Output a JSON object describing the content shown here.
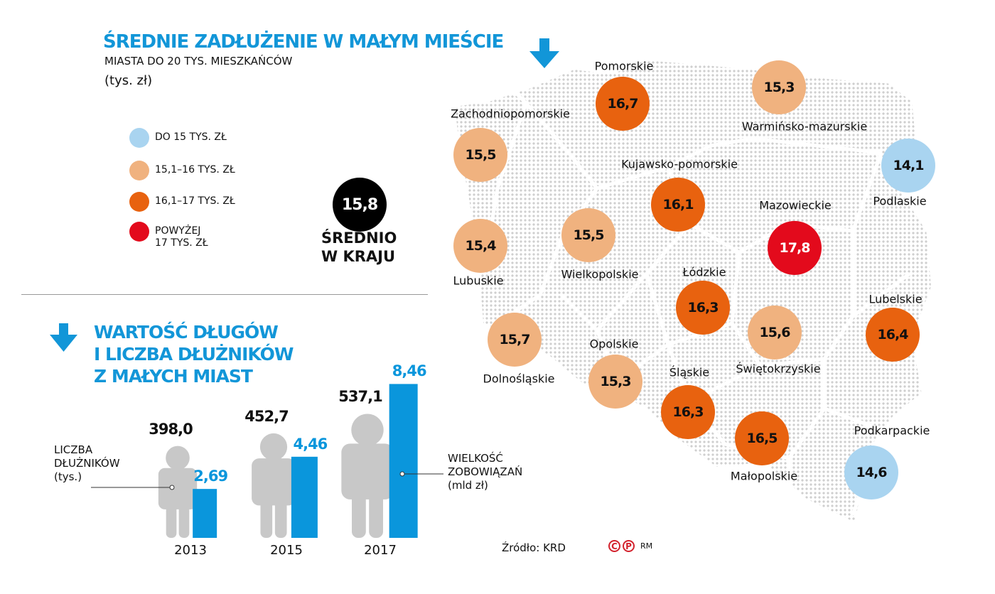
{
  "chart_data": [
    {
      "type": "map",
      "title": "ŚREDNIE ZADŁUŻENIE W MAŁYM MIEŚCIE",
      "subtitle": "MIASTA DO 20 TYS. MIESZKAŃCÓW",
      "unit": "(tys. zł)",
      "legend": [
        {
          "label": "DO 15 TYS. ZŁ",
          "color": "#a9d4f0"
        },
        {
          "label": "15,1–16 TYS. ZŁ",
          "color": "#f0b27f"
        },
        {
          "label": "16,1–17 TYS. ZŁ",
          "color": "#e8620f"
        },
        {
          "label": "POWYŻEJ 17 TYS. ZŁ",
          "color": "#e30a1c"
        }
      ],
      "national_average": {
        "value": "15,8",
        "label": "ŚREDNIO W KRAJU"
      },
      "regions": [
        {
          "name": "Pomorskie",
          "value": "16,7",
          "category": 2
        },
        {
          "name": "Warmińsko-mazurskie",
          "value": "15,3",
          "category": 1
        },
        {
          "name": "Zachodniopomorskie",
          "value": "15,5",
          "category": 1
        },
        {
          "name": "Podlaskie",
          "value": "14,1",
          "category": 0
        },
        {
          "name": "Kujawsko-pomorskie",
          "value": "16,1",
          "category": 2
        },
        {
          "name": "Mazowieckie",
          "value": "17,8",
          "category": 3
        },
        {
          "name": "Lubuskie",
          "value": "15,4",
          "category": 1
        },
        {
          "name": "Wielkopolskie",
          "value": "15,5",
          "category": 1
        },
        {
          "name": "Łódzkie",
          "value": "16,3",
          "category": 2
        },
        {
          "name": "Lubelskie",
          "value": "16,4",
          "category": 2
        },
        {
          "name": "Dolnośląskie",
          "value": "15,7",
          "category": 1
        },
        {
          "name": "Opolskie",
          "value": "15,3",
          "category": 1
        },
        {
          "name": "Świętokrzyskie",
          "value": "15,6",
          "category": 1
        },
        {
          "name": "Śląskie",
          "value": "16,3",
          "category": 2
        },
        {
          "name": "Małopolskie",
          "value": "16,5",
          "category": 2
        },
        {
          "name": "Podkarpackie",
          "value": "14,6",
          "category": 0
        }
      ]
    },
    {
      "type": "bar",
      "title": "WARTOŚĆ DŁUGÓW I LICZBA DŁUŻNIKÓW Z MAŁYCH MIAST",
      "categories": [
        "2013",
        "2015",
        "2017"
      ],
      "series": [
        {
          "name": "LICZBA DŁUŻNIKÓW (tys.)",
          "values": [
            398.0,
            452.7,
            537.1
          ],
          "labels": [
            "398,0",
            "452,7",
            "537,1"
          ],
          "color": "#c8c8c8",
          "mark": "person-silhouette"
        },
        {
          "name": "WIELKOŚĆ ZOBOWIĄZAŃ (mld zł)",
          "values": [
            2.69,
            4.46,
            8.46
          ],
          "labels": [
            "2,69",
            "4,46",
            "8,46"
          ],
          "color": "#0a96dc"
        }
      ]
    }
  ],
  "legend_series_1": [
    "LICZBA",
    "DŁUŻNIKÓW",
    "(tys.)"
  ],
  "legend_series_2": [
    "WIELKOŚĆ",
    "ZOBOWIĄZAŃ",
    "(mld zł)"
  ],
  "avg_label_lines": [
    "ŚREDNIO",
    "W KRAJU"
  ],
  "title2_lines": [
    "WARTOŚĆ DŁUGÓW",
    "I LICZBA DŁUŻNIKÓW",
    "Z MAŁYCH MIAST"
  ],
  "legend_red_lines": [
    "POWYŻEJ",
    "17 TYS. ZŁ"
  ],
  "source": "Źródło: KRD",
  "logo": {
    "c": "C",
    "p": "P",
    "text": "RM"
  },
  "accent": "#1296d8"
}
